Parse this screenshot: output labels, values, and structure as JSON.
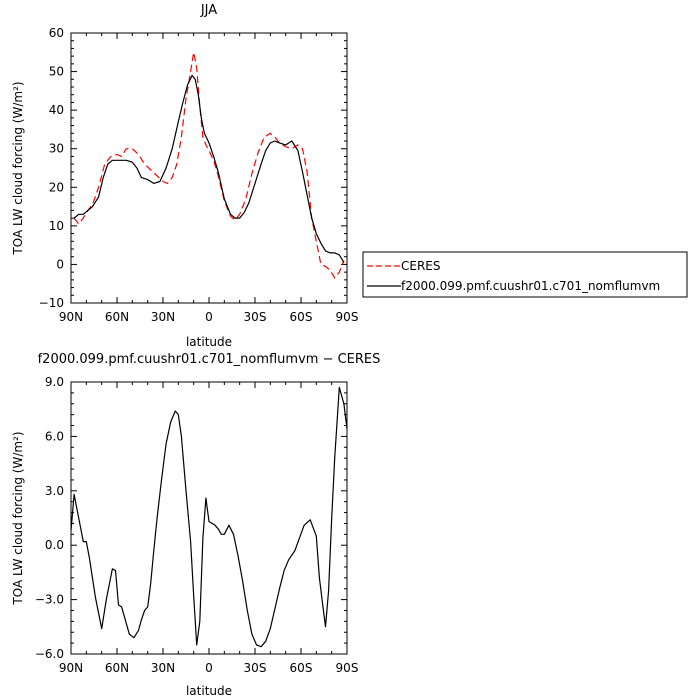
{
  "chart_data": [
    {
      "type": "line",
      "title": "JJA",
      "xlabel": "latitude",
      "ylabel": "TOA LW cloud forcing (W/m²)",
      "xlim": [
        90,
        -90
      ],
      "ylim": [
        -10,
        60
      ],
      "x_ticks": [
        90,
        60,
        30,
        0,
        -30,
        -60,
        -90
      ],
      "x_tick_labels": [
        "90N",
        "60N",
        "30N",
        "0",
        "30S",
        "60S",
        "90S"
      ],
      "y_ticks": [
        -10,
        0,
        10,
        20,
        30,
        40,
        50,
        60
      ],
      "y_tick_labels": [
        "−10",
        "0",
        "10",
        "20",
        "30",
        "40",
        "50",
        "60"
      ],
      "grid": false,
      "legend_position": "right",
      "series": [
        {
          "name": "CERES",
          "color": "#ff0000",
          "dash": "dashed",
          "x": [
            88,
            85,
            82,
            79,
            76,
            72,
            68,
            64,
            60,
            57,
            54,
            50,
            46,
            42,
            38,
            34,
            30,
            27,
            24,
            21,
            18,
            15,
            12,
            10,
            8,
            6,
            4,
            2,
            0,
            -3,
            -6,
            -10,
            -14,
            -17,
            -20,
            -24,
            -28,
            -32,
            -36,
            -40,
            -43,
            -46,
            -50,
            -54,
            -58,
            -61,
            -64,
            -67,
            -70,
            -73,
            -76,
            -79,
            -82,
            -85,
            -88
          ],
          "y": [
            12,
            10.5,
            12,
            14,
            15.5,
            20,
            26,
            28,
            28.5,
            28,
            30,
            30,
            28.5,
            26,
            24.5,
            23,
            21.5,
            21,
            22.5,
            26,
            33,
            43,
            50,
            55,
            51,
            41,
            33,
            31,
            29.5,
            27,
            23,
            16.5,
            12.5,
            11.5,
            13,
            17,
            23.5,
            29,
            33,
            34,
            33,
            31.5,
            30.5,
            30,
            31,
            30,
            24,
            12,
            6,
            0,
            -0.5,
            -1.5,
            -3.5,
            -2,
            1
          ]
        },
        {
          "name": "f2000.099.pmf.cuushr01.c701_nomflumvm",
          "color": "#000000",
          "dash": "solid",
          "x": [
            88,
            85,
            82,
            79,
            76,
            72,
            69,
            66,
            63,
            60,
            57,
            54,
            50,
            47,
            44,
            40,
            36,
            32,
            28,
            24,
            20,
            17,
            14,
            11,
            9,
            7,
            5,
            3,
            0,
            -3,
            -6,
            -10,
            -14,
            -17,
            -20,
            -23,
            -26,
            -30,
            -34,
            -37,
            -40,
            -43,
            -46,
            -50,
            -54,
            -58,
            -61,
            -64,
            -67,
            -70,
            -73,
            -76,
            -79,
            -82,
            -85,
            -88
          ],
          "y": [
            12,
            13,
            13,
            14,
            15,
            17.5,
            22.5,
            26,
            27,
            27,
            27,
            27,
            26.5,
            25,
            22.5,
            22,
            21,
            21.5,
            25,
            30,
            37,
            42,
            46.5,
            49,
            48,
            44,
            38,
            34,
            31.5,
            28,
            24,
            17,
            13,
            12,
            12,
            13.5,
            16,
            21,
            26,
            29.5,
            31.5,
            32,
            31.5,
            31,
            32,
            29.5,
            24,
            18,
            12,
            8,
            5.5,
            3.5,
            3,
            3,
            2.5,
            0.5
          ]
        }
      ]
    },
    {
      "type": "line",
      "title": "f2000.099.pmf.cuushr01.c701_nomflumvm − CERES",
      "xlabel": "latitude",
      "ylabel": "TOA LW cloud forcing (W/m²)",
      "xlim": [
        90,
        -90
      ],
      "ylim": [
        -6.0,
        9.0
      ],
      "x_ticks": [
        90,
        60,
        30,
        0,
        -30,
        -60,
        -90
      ],
      "x_tick_labels": [
        "90N",
        "60N",
        "30N",
        "0",
        "30S",
        "60S",
        "90S"
      ],
      "y_ticks": [
        -6.0,
        -3.0,
        0.0,
        3.0,
        6.0,
        9.0
      ],
      "y_tick_labels": [
        "−6.0",
        "−3.0",
        "0.0",
        "3.0",
        "6.0",
        "9.0"
      ],
      "grid": false,
      "series": [
        {
          "color": "#000000",
          "dash": "solid",
          "x": [
            90,
            88,
            85,
            82,
            80,
            78,
            74,
            70,
            67,
            63,
            61,
            59,
            57,
            55,
            52,
            49,
            46,
            44,
            42,
            40,
            38,
            36,
            34,
            31,
            28,
            25,
            22,
            20,
            18,
            15,
            12,
            10,
            8,
            6,
            4,
            2,
            0,
            -2,
            -4,
            -6,
            -8,
            -10,
            -13,
            -16,
            -19,
            -22,
            -25,
            -28,
            -31,
            -34,
            -37,
            -40,
            -43,
            -46,
            -49,
            -52,
            -56,
            -59,
            -62,
            -66,
            -70,
            -72,
            -74,
            -76,
            -78,
            -80,
            -82,
            -85,
            -88,
            -90
          ],
          "y": [
            0.8,
            2.8,
            1.5,
            0.2,
            0.2,
            -0.7,
            -2.9,
            -4.6,
            -3,
            -1.3,
            -1.4,
            -3.3,
            -3.4,
            -4,
            -4.9,
            -5.1,
            -4.7,
            -4.1,
            -3.6,
            -3.4,
            -2.1,
            -0.3,
            1.4,
            3.6,
            5.6,
            6.8,
            7.4,
            7.2,
            6,
            3,
            0.2,
            -2.8,
            -5.5,
            -4.2,
            0.4,
            2.6,
            1.3,
            1.2,
            1.1,
            0.9,
            0.6,
            0.6,
            1.1,
            0.6,
            -0.6,
            -2,
            -3.6,
            -4.9,
            -5.5,
            -5.6,
            -5.3,
            -4.6,
            -3.5,
            -2.4,
            -1.4,
            -0.8,
            -0.3,
            0.4,
            1.1,
            1.4,
            0.5,
            -1.8,
            -3.2,
            -4.5,
            -2.5,
            1.5,
            4.8,
            8.7,
            7.8,
            6.4
          ],
          "note": ""
        }
      ]
    }
  ],
  "legend": {
    "items": [
      {
        "label": "CERES",
        "color": "#ff0000",
        "dash": "dashed"
      },
      {
        "label": "f2000.099.pmf.cuushr01.c701_nomflumvm",
        "color": "#000000",
        "dash": "solid"
      }
    ]
  }
}
